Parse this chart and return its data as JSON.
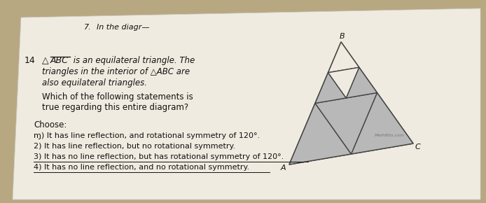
{
  "bg_color": "#b8a882",
  "paper_color": "#f0ebe0",
  "triangle_gray": "#b8b8b8",
  "triangle_white": "#f0ebe0",
  "triangle_outline": "#444444",
  "text_color": "#111111",
  "watermark_color": "#777777",
  "q_number": "7.",
  "q_intro": "In the diagr—",
  "prob_num": "14",
  "abc_label": "ABC",
  "text_line1": "is an equilateral triangle. The",
  "text_line2": "triangles in the interior of △ABC are",
  "text_line3": "also equilateral triangles.",
  "text_line4": "Which of the following statements is",
  "text_line5": "true regarding this entire diagram?",
  "choose": "Choose:",
  "opt1": "1) It has line reflection, and rotational symmetry of 120°.",
  "opt2": "2) It has line reflection, but no rotational symmetry.",
  "opt3": "3) It has no line reflection, but has rotational symmetry of 120°.",
  "opt4": "4) It has no line reflection, and no rotational symmetry.",
  "watermark": "MathBits.com"
}
